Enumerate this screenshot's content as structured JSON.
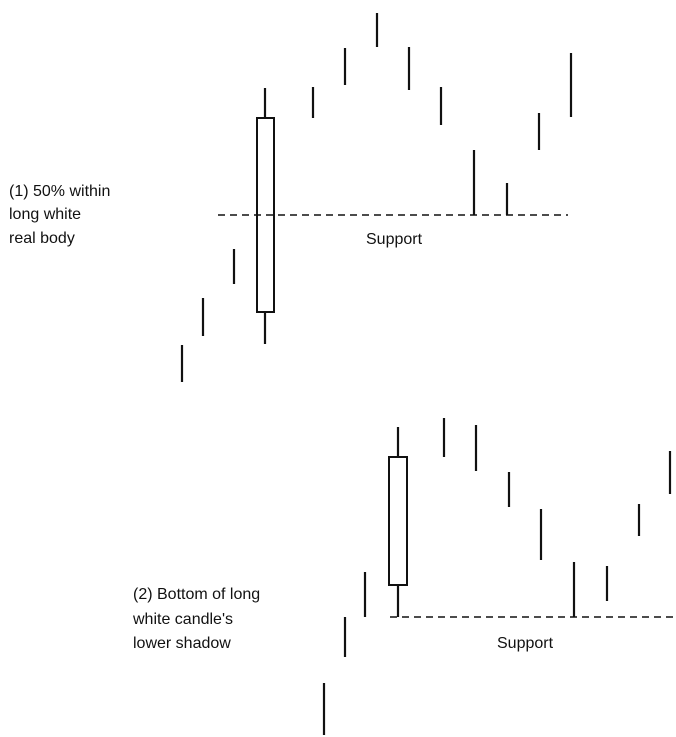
{
  "panels": [
    {
      "label": [
        "(1) 50% within",
        "long white",
        "real body"
      ],
      "support": "Support"
    },
    {
      "label": [
        "(2) Bottom of long",
        "white candle's",
        "lower shadow"
      ],
      "support": "Support"
    }
  ]
}
